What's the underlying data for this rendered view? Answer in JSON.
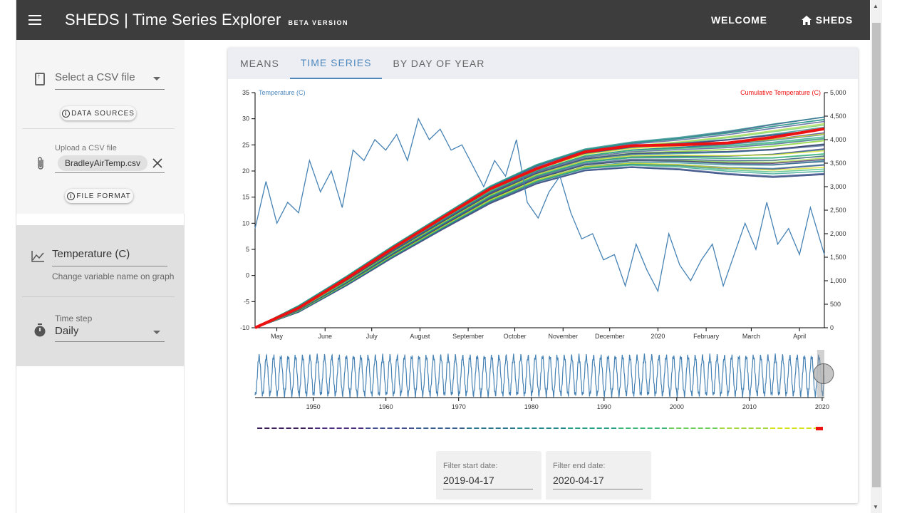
{
  "header": {
    "brand": "SHEDS",
    "separator": "|",
    "title": "Time Series Explorer",
    "beta": "BETA VERSION",
    "nav": [
      {
        "label": "WELCOME"
      },
      {
        "label": "SHEDS"
      }
    ]
  },
  "sidebar": {
    "select_csv": "Select a CSV file",
    "data_sources_label": "DATA SOURCES",
    "upload_label": "Upload a CSV file",
    "uploaded_file": "BradleyAirTemp.csv",
    "file_format_label": "FILE FORMAT",
    "variable_name": "Temperature (C)",
    "variable_hint": "Change variable name on graph",
    "timestep_label": "Time step",
    "timestep_value": "Daily"
  },
  "tabs": [
    {
      "label": "MEANS",
      "active": false
    },
    {
      "label": "TIME SERIES",
      "active": true
    },
    {
      "label": "BY DAY OF YEAR",
      "active": false
    }
  ],
  "filter": {
    "start_label": "Filter start date:",
    "start_value": "2019-04-17",
    "end_label": "Filter end date:",
    "end_value": "2020-04-17"
  },
  "colors": {
    "accent": "#4e88bd",
    "temperature_line": "#4682b4",
    "cumulative_highlight": "#ee1111"
  },
  "chart_data": [
    {
      "type": "line",
      "title": "",
      "ylabel_left": "Temperature (C)",
      "ylabel_right": "Cumulative Temperature (C)",
      "ylim_left": [
        -10,
        35
      ],
      "ylim_right": [
        0,
        5000
      ],
      "yticks_left": [
        "35",
        "30",
        "25",
        "20",
        "15",
        "10",
        "5",
        "0",
        "-5",
        "-10"
      ],
      "yticks_right": [
        "5,000",
        "4,500",
        "4,000",
        "3,500",
        "3,000",
        "2,500",
        "2,000",
        "1,500",
        "1,000",
        "500",
        "0"
      ],
      "xticks": [
        "May",
        "June",
        "July",
        "August",
        "September",
        "October",
        "November",
        "December",
        "2020",
        "February",
        "March",
        "April"
      ],
      "series": [
        {
          "name": "Temperature (C)",
          "axis": "left",
          "x": [
            "2019-04-17",
            "2019-04-24",
            "2019-05-01",
            "2019-05-08",
            "2019-05-15",
            "2019-05-22",
            "2019-05-29",
            "2019-06-05",
            "2019-06-12",
            "2019-06-19",
            "2019-06-26",
            "2019-07-03",
            "2019-07-10",
            "2019-07-17",
            "2019-07-24",
            "2019-07-31",
            "2019-08-07",
            "2019-08-14",
            "2019-08-21",
            "2019-08-28",
            "2019-09-04",
            "2019-09-11",
            "2019-09-18",
            "2019-09-25",
            "2019-10-02",
            "2019-10-09",
            "2019-10-16",
            "2019-10-23",
            "2019-10-30",
            "2019-11-06",
            "2019-11-13",
            "2019-11-20",
            "2019-11-27",
            "2019-12-04",
            "2019-12-11",
            "2019-12-18",
            "2019-12-25",
            "2020-01-01",
            "2020-01-08",
            "2020-01-15",
            "2020-01-22",
            "2020-01-29",
            "2020-02-05",
            "2020-02-12",
            "2020-02-19",
            "2020-02-26",
            "2020-03-04",
            "2020-03-11",
            "2020-03-18",
            "2020-03-25",
            "2020-04-01",
            "2020-04-08",
            "2020-04-17"
          ],
          "values": [
            9,
            18,
            10,
            14,
            12,
            22,
            16,
            20,
            13,
            24,
            22,
            26,
            24,
            27,
            22,
            30,
            26,
            28,
            24,
            25,
            21,
            17,
            22,
            19,
            26,
            14,
            11,
            16,
            19,
            12,
            7,
            8,
            3,
            4,
            -2,
            6,
            1,
            -3,
            8,
            2,
            -1,
            3,
            6,
            -2,
            4,
            10,
            5,
            14,
            6,
            9,
            4,
            13,
            4
          ]
        },
        {
          "name": "Cumulative Temperature (C) 2019-2020",
          "axis": "right",
          "x": [
            "2019-04-17",
            "2019-05-15",
            "2019-06-15",
            "2019-07-15",
            "2019-08-15",
            "2019-09-15",
            "2019-10-15",
            "2019-11-15",
            "2019-12-15",
            "2020-01-15",
            "2020-02-15",
            "2020-03-15",
            "2020-04-17"
          ],
          "values": [
            0,
            420,
            1050,
            1700,
            2330,
            2950,
            3380,
            3740,
            3870,
            3890,
            3930,
            4050,
            4230
          ]
        }
      ],
      "envelope": {
        "name": "Cumulative Temperature (C) other years",
        "upper": [
          0,
          470,
          1100,
          1750,
          2380,
          3010,
          3470,
          3800,
          3950,
          4050,
          4180,
          4330,
          4480
        ],
        "lower": [
          0,
          330,
          900,
          1500,
          2080,
          2640,
          3060,
          3340,
          3410,
          3360,
          3260,
          3200,
          3260
        ]
      }
    },
    {
      "type": "line",
      "title": "",
      "xticks": [
        "1950",
        "1960",
        "1970",
        "1980",
        "1990",
        "2000",
        "2010",
        "2020"
      ],
      "xlim": [
        1942,
        2020.3
      ],
      "ylim": [
        -15,
        32
      ],
      "series": [
        {
          "name": "Temperature (C)",
          "annual_cycle_min": -12,
          "annual_cycle_max": 28
        }
      ],
      "selection": [
        "2019-04-17",
        "2020-04-17"
      ]
    }
  ]
}
